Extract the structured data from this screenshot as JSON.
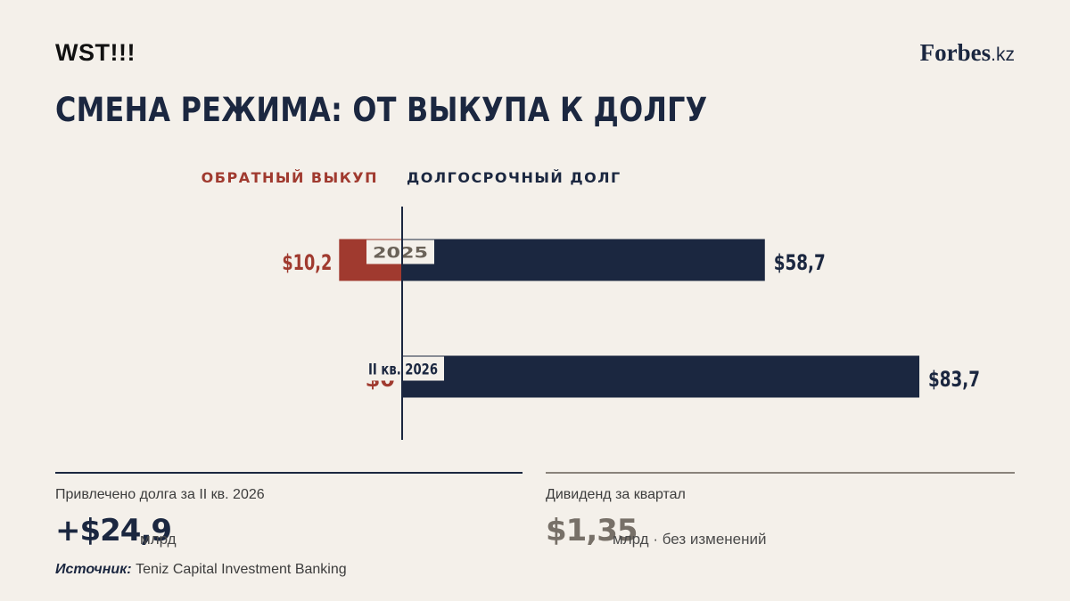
{
  "brand": {
    "left": "WST!!!",
    "right_main": "Forbes",
    "right_tld": ".kz"
  },
  "title": "СМЕНА РЕЖИМА: ОТ ВЫКУПА К ДОЛГУ",
  "legend": {
    "buyback": "ОБРАТНЫЙ ВЫКУП",
    "debt": "ДОЛГОСРОЧНЫЙ ДОЛГ"
  },
  "colors": {
    "buyback": "#a03a2f",
    "debt": "#1b2740",
    "background": "#f4f0ea",
    "muted": "#777068"
  },
  "chart_data": {
    "type": "bar",
    "orientation": "horizontal-diverging",
    "categories": [
      "2025",
      "II кв. 2026"
    ],
    "series": [
      {
        "name": "ОБРАТНЫЙ ВЫКУП",
        "values": [
          10.2,
          0
        ],
        "labels": [
          "$10,2",
          "$0"
        ]
      },
      {
        "name": "ДОЛГОСРОЧНЫЙ ДОЛГ",
        "values": [
          58.7,
          83.7
        ],
        "labels": [
          "$58,7",
          "$83,7"
        ]
      }
    ],
    "legend_position": "top",
    "grid": false
  },
  "stats": {
    "left": {
      "label": "Привлечено долга за II кв. 2026",
      "value": "+$24,9",
      "unit": "млрд"
    },
    "right": {
      "label": "Дивиденд за квартал",
      "value": "$1,35",
      "unit": "млрд · без изменений"
    }
  },
  "source": {
    "label": "Источник:",
    "text": "Teniz Capital Investment Banking"
  }
}
